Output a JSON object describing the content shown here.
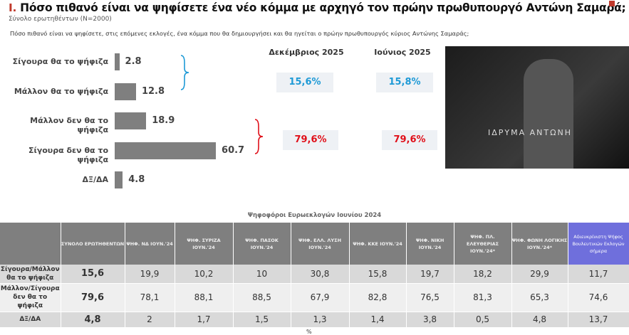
{
  "header": {
    "number": "I.",
    "title": "Πόσο πιθανό είναι να ψηφίσετε ένα νέο κόμμα με αρχηγό τον πρώην πρωθυπουργό Αντώνη Σαμαρά;",
    "subtitle": "Σύνολο ερωτηθέντων (N=2000)",
    "question": "Πόσο πιθανό είναι να ψηφίσετε, στις επόμενες εκλογές, ένα κόμμα που θα δημιουργήσει και θα ηγείται ο πρώην πρωθυπουργός κύριος Αντώνης Σαμαράς;",
    "logo": "ΤΑΖΕ"
  },
  "chart_data": {
    "type": "bar",
    "orientation": "horizontal",
    "categories": [
      "Σίγουρα θα το ψήφιζα",
      "Μάλλον θα το ψήφιζα",
      "Μάλλον δεν θα το ψήφιζα",
      "Σίγουρα δεν θα το ψήφιζα",
      "ΔΞ/ΔΑ"
    ],
    "values": [
      2.8,
      12.8,
      18.9,
      60.7,
      4.8
    ],
    "labels": [
      "2.8",
      "12.8",
      "18.9",
      "60.7",
      "4.8"
    ],
    "bar_color": "#7f7f7f",
    "grid": false
  },
  "comparison": {
    "columns": [
      "Δεκέμβριος 2025",
      "Ιούνιος 2025"
    ],
    "positive": [
      "15,6%",
      "15,8%"
    ],
    "negative": [
      "79,6%",
      "79,6%"
    ],
    "positive_color": "#1e9ad6",
    "negative_color": "#e0101a"
  },
  "photo": {
    "caption": "ΙΔΡΥΜΑ ΑΝΤΩΝΗ"
  },
  "table": {
    "caption": "Ψηφοφόροι Ευρωεκλογών Ιουνίου 2024",
    "headers": [
      "",
      "ΣΥΝΟΛΟ ΕΡΩΤΗΘΕΝΤΩΝ",
      "ΨΗΦ. ΝΔ ΙΟΥΝ.'24",
      "ΨΗΦ. ΣΥΡΙΖΑ ΙΟΥΝ.'24",
      "ΨΗΦ. ΠΑΣΟΚ ΙΟΥΝ.'24",
      "ΨΗΦ. ΕΛΛ. ΛΥΣΗ ΙΟΥΝ.'24",
      "ΨΗΦ. ΚΚΕ ΙΟΥΝ.'24",
      "ΨΗΦ. ΝΙΚΗ ΙΟΥΝ.'24",
      "ΨΗΦ. ΠΛ. ΕΛΕΥΘΕΡΙΑΣ ΙΟΥΝ.'24*",
      "ΨΗΦ. ΦΩΝΗ ΛΟΓΙΚΗΣ ΙΟΥΝ.'24*",
      "Αδιευκρίνιστη Ψήφος Βουλευτικών Εκλογών σήμερα"
    ],
    "rows": [
      [
        "Σίγουρα/Μάλλον θα το ψήφιζα",
        "15,6",
        "19,9",
        "10,2",
        "10",
        "30,8",
        "15,8",
        "19,7",
        "18,2",
        "29,9",
        "11,7"
      ],
      [
        "Μάλλον/Σίγουρα δεν θα το ψήφιζα",
        "79,6",
        "78,1",
        "88,1",
        "88,5",
        "67,9",
        "82,8",
        "76,5",
        "81,3",
        "65,3",
        "74,6"
      ],
      [
        "ΔΞ/ΔΑ",
        "4,8",
        "2",
        "1,7",
        "1,5",
        "1,3",
        "1,4",
        "3,8",
        "0,5",
        "4,8",
        "13,7"
      ]
    ],
    "unit": "%",
    "highlight_color": "#6f6fdc"
  }
}
